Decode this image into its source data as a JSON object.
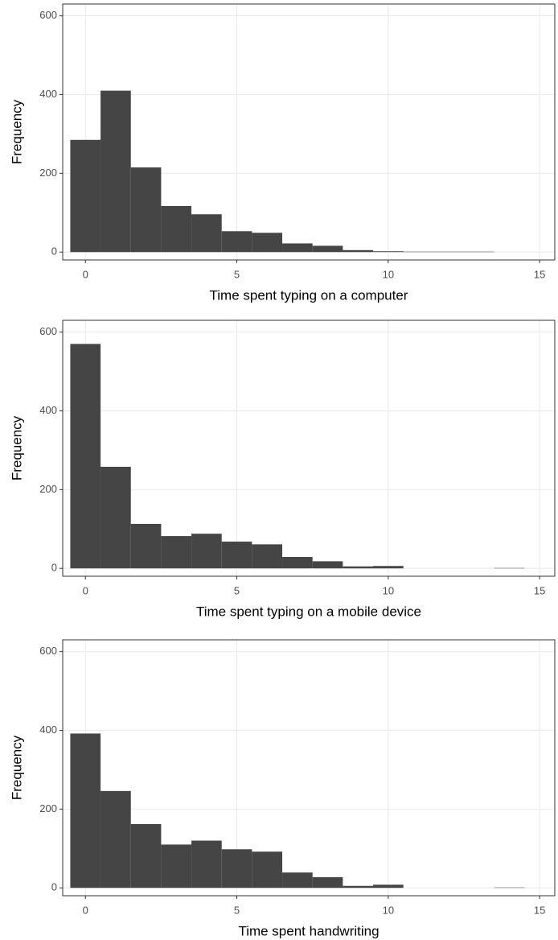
{
  "chart_data": [
    {
      "type": "histogram",
      "xlabel": "Time spent typing on a computer",
      "ylabel": "Frequency",
      "bins": [
        -0.5,
        0.5,
        1.5,
        2.5,
        3.5,
        4.5,
        5.5,
        6.5,
        7.5,
        8.5,
        9.5,
        10.5,
        11.5,
        12.5,
        13.5,
        14.5
      ],
      "values": [
        285,
        410,
        215,
        117,
        96,
        53,
        49,
        22,
        16,
        5,
        2,
        1,
        1,
        1,
        0
      ],
      "color": "#454545",
      "xlim": [
        -0.75,
        15.5
      ],
      "ylim": [
        -20,
        630
      ],
      "xticks": [
        0,
        5,
        10,
        15
      ],
      "yticks": [
        0,
        200,
        400,
        600
      ],
      "grid": true
    },
    {
      "type": "histogram",
      "xlabel": "Time spent typing on a mobile device",
      "ylabel": "Frequency",
      "bins": [
        -0.5,
        0.5,
        1.5,
        2.5,
        3.5,
        4.5,
        5.5,
        6.5,
        7.5,
        8.5,
        9.5,
        10.5,
        11.5,
        12.5,
        13.5,
        14.5
      ],
      "values": [
        570,
        258,
        113,
        82,
        88,
        68,
        61,
        29,
        18,
        5,
        6,
        0,
        0,
        0,
        1
      ],
      "color": "#454545",
      "xlim": [
        -0.75,
        15.5
      ],
      "ylim": [
        -20,
        630
      ],
      "xticks": [
        0,
        5,
        10,
        15
      ],
      "yticks": [
        0,
        200,
        400,
        600
      ],
      "grid": true
    },
    {
      "type": "histogram",
      "xlabel": "Time spent handwriting",
      "ylabel": "Frequency",
      "bins": [
        -0.5,
        0.5,
        1.5,
        2.5,
        3.5,
        4.5,
        5.5,
        6.5,
        7.5,
        8.5,
        9.5,
        10.5,
        11.5,
        12.5,
        13.5,
        14.5
      ],
      "values": [
        392,
        246,
        162,
        110,
        120,
        98,
        92,
        39,
        27,
        5,
        8,
        0,
        0,
        0,
        1
      ],
      "color": "#454545",
      "xlim": [
        -0.75,
        15.5
      ],
      "ylim": [
        -20,
        630
      ],
      "xticks": [
        0,
        5,
        10,
        15
      ],
      "yticks": [
        0,
        200,
        400,
        600
      ],
      "grid": true
    }
  ]
}
